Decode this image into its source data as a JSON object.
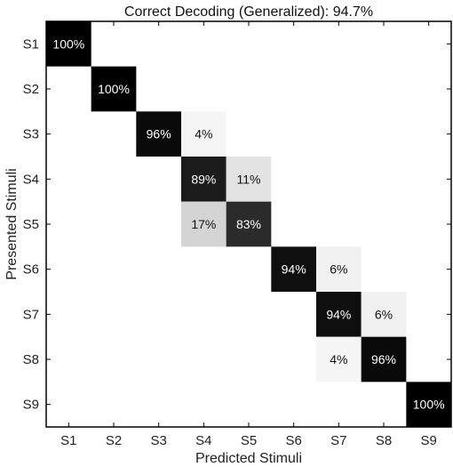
{
  "chart_data": {
    "type": "heatmap",
    "title": "Correct Decoding (Generalized): 94.7%",
    "xlabel": "Predicted Stimuli",
    "ylabel": "Presented Stimuli",
    "x_categories": [
      "S1",
      "S2",
      "S3",
      "S4",
      "S5",
      "S6",
      "S7",
      "S8",
      "S9"
    ],
    "y_categories": [
      "S1",
      "S2",
      "S3",
      "S4",
      "S5",
      "S6",
      "S7",
      "S8",
      "S9"
    ],
    "value_unit": "%",
    "value_range": [
      0,
      100
    ],
    "colormap": "gray-reversed",
    "cells": [
      {
        "row": "S1",
        "col": "S1",
        "value": 100
      },
      {
        "row": "S2",
        "col": "S2",
        "value": 100
      },
      {
        "row": "S3",
        "col": "S3",
        "value": 96
      },
      {
        "row": "S3",
        "col": "S4",
        "value": 4
      },
      {
        "row": "S4",
        "col": "S4",
        "value": 89
      },
      {
        "row": "S4",
        "col": "S5",
        "value": 11
      },
      {
        "row": "S5",
        "col": "S4",
        "value": 17
      },
      {
        "row": "S5",
        "col": "S5",
        "value": 83
      },
      {
        "row": "S6",
        "col": "S6",
        "value": 94
      },
      {
        "row": "S6",
        "col": "S7",
        "value": 6
      },
      {
        "row": "S7",
        "col": "S7",
        "value": 94
      },
      {
        "row": "S7",
        "col": "S8",
        "value": 6
      },
      {
        "row": "S8",
        "col": "S7",
        "value": 4
      },
      {
        "row": "S8",
        "col": "S8",
        "value": 96
      },
      {
        "row": "S9",
        "col": "S9",
        "value": 100
      }
    ]
  }
}
